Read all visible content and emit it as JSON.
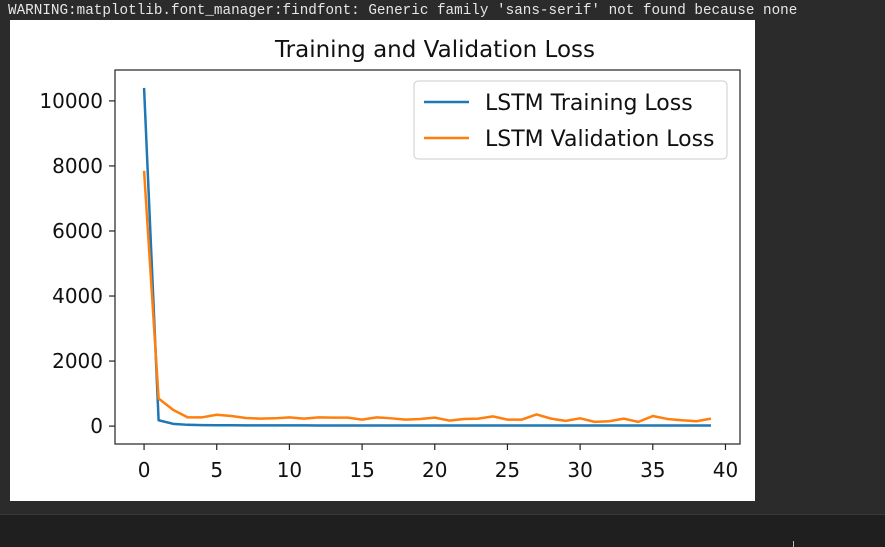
{
  "console": {
    "warning_text": "WARNING:matplotlib.font_manager:findfont: Generic family 'sans-serif' not found because none"
  },
  "chart_data": {
    "type": "line",
    "title": "Training and Validation Loss",
    "xlabel": "",
    "ylabel": "",
    "xlim": [
      -2,
      41
    ],
    "ylim": [
      -550,
      10950
    ],
    "xticks": [
      0,
      5,
      10,
      15,
      20,
      25,
      30,
      35,
      40
    ],
    "yticks": [
      0,
      2000,
      4000,
      6000,
      8000,
      10000
    ],
    "legend_position": "upper-right",
    "x": [
      0,
      1,
      2,
      3,
      4,
      5,
      6,
      7,
      8,
      9,
      10,
      11,
      12,
      13,
      14,
      15,
      16,
      17,
      18,
      19,
      20,
      21,
      22,
      23,
      24,
      25,
      26,
      27,
      28,
      29,
      30,
      31,
      32,
      33,
      34,
      35,
      36,
      37,
      38,
      39
    ],
    "series": [
      {
        "name": "LSTM Training Loss",
        "color": "#1f77b4",
        "values": [
          10400,
          180,
          70,
          40,
          30,
          25,
          25,
          22,
          22,
          22,
          22,
          22,
          20,
          20,
          20,
          20,
          20,
          20,
          20,
          20,
          20,
          20,
          20,
          20,
          20,
          20,
          20,
          20,
          20,
          20,
          20,
          20,
          20,
          20,
          20,
          20,
          20,
          20,
          20,
          20
        ]
      },
      {
        "name": "LSTM Validation Loss",
        "color": "#ff7f0e",
        "values": [
          7850,
          850,
          500,
          270,
          270,
          350,
          310,
          250,
          230,
          240,
          270,
          230,
          270,
          260,
          260,
          200,
          270,
          240,
          200,
          220,
          260,
          170,
          220,
          230,
          300,
          200,
          200,
          360,
          230,
          160,
          240,
          130,
          150,
          230,
          130,
          310,
          220,
          180,
          150,
          230
        ]
      }
    ]
  }
}
